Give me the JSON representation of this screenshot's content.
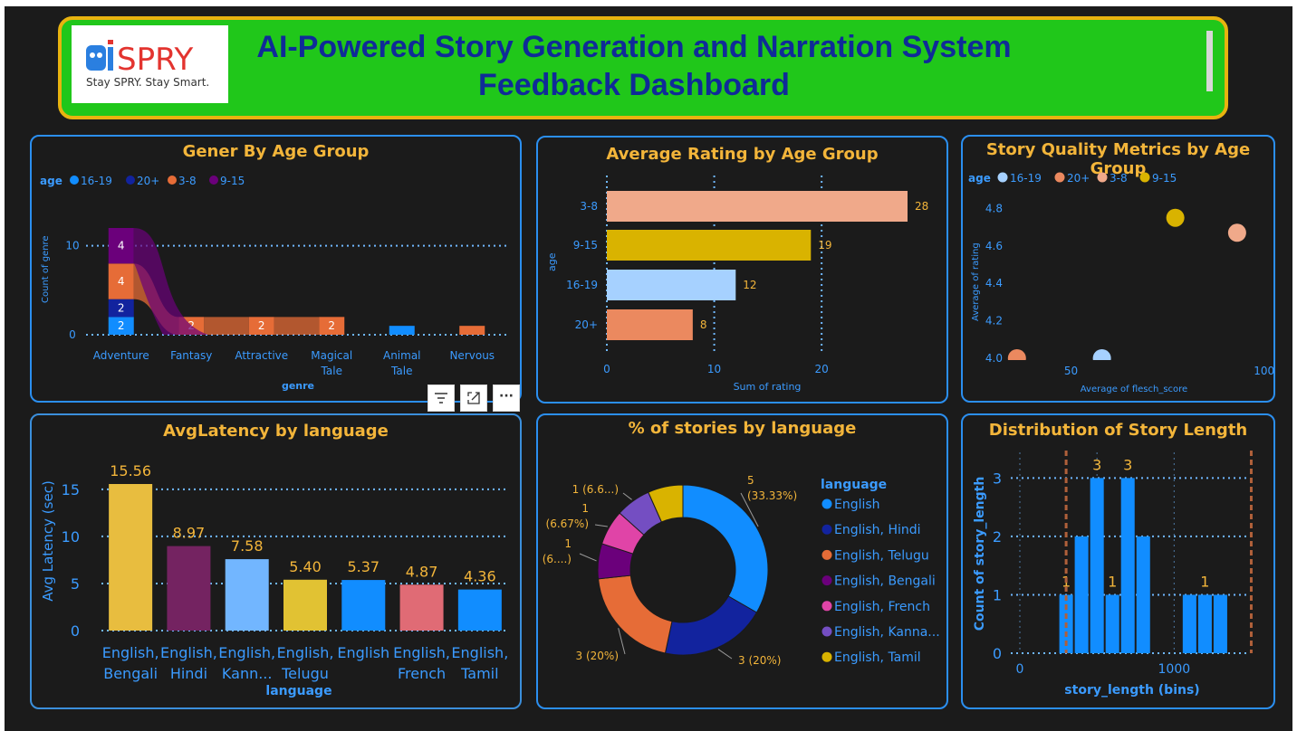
{
  "header": {
    "logo_word": "SPRY",
    "logo_tagline": "Stay SPRY. Stay Smart.",
    "title_line1": "AI-Powered Story Generation and Narration System",
    "title_line2": "Feedback Dashboard"
  },
  "colors": {
    "panel_border": "#2b8ff0",
    "title": "#f3b53a",
    "background": "#1b1b1b",
    "header_bg": "#20c71a",
    "header_border": "#e8b30f"
  },
  "toolbar": {
    "filter_icon": "filter-icon",
    "focus_icon": "focus-mode-icon",
    "more_icon": "more-options-icon",
    "more_label": "···"
  },
  "chart_data": [
    {
      "type": "bar",
      "title": "Gener By Age Group",
      "xlabel": "genre",
      "ylabel": "Count of genre",
      "legend_title": "age",
      "legend": [
        "16-19",
        "20+",
        "3-8",
        "9-15"
      ],
      "categories": [
        "Adventure",
        "Fantasy",
        "Attractive",
        "Magical Tale",
        "Animal Tale",
        "Nervous"
      ],
      "series": [
        {
          "name": "16-19",
          "color": "#118dff",
          "values": [
            2,
            0,
            0,
            0,
            1,
            0
          ]
        },
        {
          "name": "20+",
          "color": "#12239e",
          "values": [
            2,
            0,
            0,
            0,
            0,
            0
          ]
        },
        {
          "name": "3-8",
          "color": "#e66c37",
          "values": [
            4,
            2,
            2,
            2,
            0,
            1
          ]
        },
        {
          "name": "9-15",
          "color": "#6b007b",
          "values": [
            4,
            0,
            0,
            0,
            0,
            0
          ]
        }
      ],
      "ylim": [
        0,
        12
      ],
      "yticks": [
        0,
        10
      ],
      "legend_position": "top-left"
    },
    {
      "type": "bar",
      "orientation": "horizontal",
      "title": "Average Rating by Age Group",
      "xlabel": "Sum of rating",
      "ylabel": "age",
      "categories": [
        "3-8",
        "9-15",
        "16-19",
        "20+"
      ],
      "values": [
        28,
        19,
        12,
        8
      ],
      "colors": [
        "#f0a98a",
        "#d9b300",
        "#a6d1ff",
        "#eb895f"
      ],
      "xlim": [
        0,
        28
      ],
      "xticks": [
        0,
        10,
        20
      ]
    },
    {
      "type": "scatter",
      "title": "Story Quality Metrics by Age Group",
      "xlabel": "Average of flesch_score",
      "ylabel": "Average of rating",
      "legend_title": "age",
      "legend": [
        "16-19",
        "20+",
        "3-8",
        "9-15"
      ],
      "points": [
        {
          "name": "9-15",
          "color": "#d9b300",
          "x": 77,
          "y": 4.75
        },
        {
          "name": "3-8",
          "color": "#f0a98a",
          "x": 93,
          "y": 4.67
        },
        {
          "name": "20+",
          "color": "#eb895f",
          "x": 36,
          "y": 4.0
        },
        {
          "name": "16-19",
          "color": "#a6d1ff",
          "x": 58,
          "y": 4.0
        }
      ],
      "xlim": [
        33,
        101
      ],
      "xticks": [
        50,
        100
      ],
      "ylim": [
        4.0,
        4.85
      ],
      "yticks": [
        "4.0",
        "4.2",
        "4.4",
        "4.6",
        "4.8"
      ],
      "legend_position": "top-left"
    },
    {
      "type": "bar",
      "title": "AvgLatency by language",
      "xlabel": "language",
      "ylabel": "Avg Latency (sec)",
      "categories": [
        [
          "English,",
          "Bengali"
        ],
        [
          "English,",
          "Hindi"
        ],
        [
          "English,",
          "Kann..."
        ],
        [
          "English,",
          "Telugu"
        ],
        [
          "English"
        ],
        [
          "English,",
          "French"
        ],
        [
          "English,",
          "Tamil"
        ]
      ],
      "values": [
        15.56,
        8.97,
        7.58,
        5.4,
        5.37,
        4.87,
        4.36
      ],
      "labels": [
        "15.56",
        "8.97",
        "7.58",
        "5.40",
        "5.37",
        "4.87",
        "4.36"
      ],
      "colors": [
        "#e8bd3f",
        "#742361",
        "#72b6ff",
        "#e1c233",
        "#118dff",
        "#e06b75",
        "#118dff"
      ],
      "ylim": [
        0,
        17
      ],
      "yticks": [
        0,
        5,
        10,
        15
      ]
    },
    {
      "type": "pie",
      "title": "% of stories by language",
      "legend_title": "language",
      "labels": [
        "English",
        "English, Hindi",
        "English, Telugu",
        "English, Bengali",
        "English, French",
        "English, Kanna...",
        "English, Tamil"
      ],
      "values": [
        5,
        3,
        3,
        1,
        1,
        1,
        1
      ],
      "colors": [
        "#118dff",
        "#12239e",
        "#e66c37",
        "#6b007b",
        "#e044a7",
        "#744ec2",
        "#d9b300"
      ],
      "data_labels": [
        [
          "5",
          "(33.33%)"
        ],
        [
          "3 (20%)"
        ],
        [
          "3 (20%)"
        ],
        [
          "1",
          "(6....)"
        ],
        [
          "1",
          "(6.67%)"
        ],
        [
          "1 (6.6...)"
        ]
      ]
    },
    {
      "type": "bar",
      "title": "Distribution of Story Length",
      "xlabel": "story_length (bins)",
      "ylabel": "Count of story_length",
      "bins": [
        {
          "x": 300,
          "value": 1
        },
        {
          "x": 400,
          "value": 2
        },
        {
          "x": 500,
          "value": 3
        },
        {
          "x": 600,
          "value": 1
        },
        {
          "x": 700,
          "value": 3
        },
        {
          "x": 800,
          "value": 2
        },
        {
          "x": 1100,
          "value": 1
        },
        {
          "x": 1200,
          "value": 1
        },
        {
          "x": 1300,
          "value": 1
        }
      ],
      "bar_labels": [
        {
          "bin": 300,
          "text": "1"
        },
        {
          "bin": 500,
          "text": "3"
        },
        {
          "bin": 600,
          "text": "1"
        },
        {
          "bin": 700,
          "text": "3"
        },
        {
          "bin": 1200,
          "text": "1"
        }
      ],
      "reference_lines_x": [
        300,
        1500
      ],
      "xlim": [
        0,
        1550
      ],
      "xticks": [
        0,
        1000
      ],
      "ylim": [
        0,
        3.3
      ],
      "yticks": [
        0,
        1,
        2,
        3
      ]
    }
  ]
}
